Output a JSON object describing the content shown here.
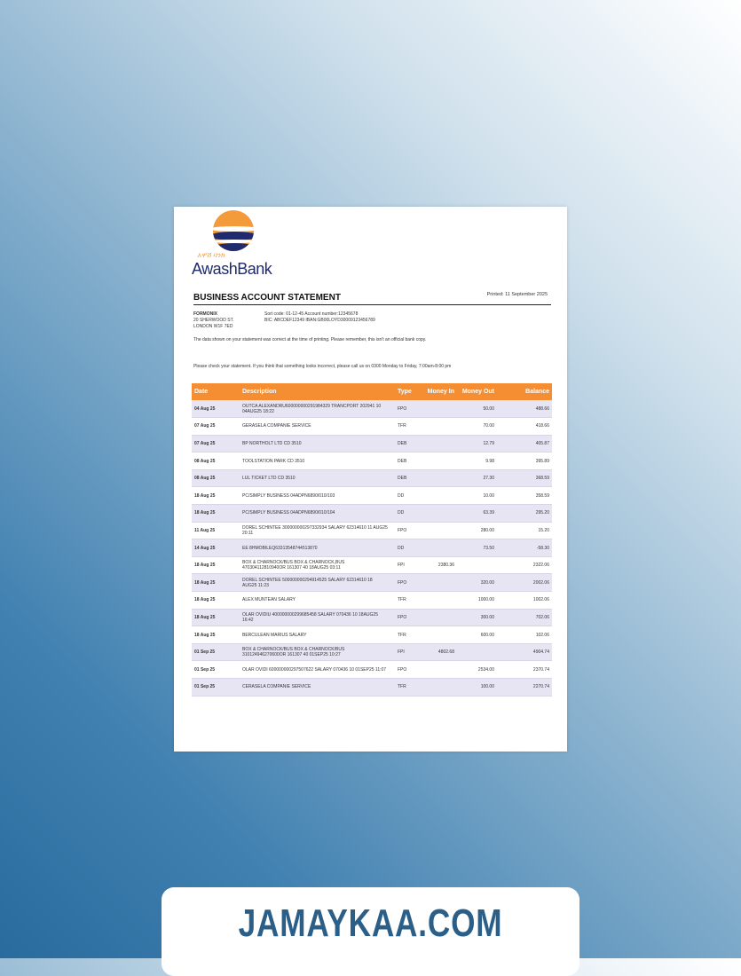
{
  "bank": {
    "name": "AwashBank",
    "amharic": "አዋሽ ባንክ"
  },
  "statement": {
    "title": "BUSINESS ACCOUNT STATEMENT",
    "printed": "Printed: 11 September 2025",
    "customer": [
      "FORMONIX",
      "20 SHERWOOD ST.",
      "LONDON W1F 7ED"
    ],
    "account_line1": "Sort code: 01-12-45   Account number:12345678",
    "account_line2": "BIC: ABCDEF12349   IBAN:GB00LOYD30009123456789",
    "note1": "The data shown on your statement was correct at the time of printing. Please remember, this isn't an official bank copy.",
    "note2": "Please check your statement. If you think that something looks incorrect, please call us on 0300 Monday to Friday, 7:00am-8:00 pm"
  },
  "table": {
    "headers": [
      "Date",
      "Description",
      "Type",
      "Money In",
      "Money Out",
      "Balance"
    ],
    "rows": [
      [
        "04 Aug 25",
        "OUTCA ALEXANDRU600000000291984329 TRANCPORT 202941 10 04AUG25 18:22",
        "FPO",
        "",
        "50.00",
        "488.66"
      ],
      [
        "07 Aug 25",
        "GERASELA COMPANIE SERVICE",
        "TFR",
        "",
        "70.00",
        "418.66"
      ],
      [
        "07 Aug 25",
        "BP NORTHOLT LTD CD 3510",
        "DEB",
        "",
        "12.79",
        "405.87"
      ],
      [
        "08 Aug 25",
        "TOOLSTATION PARK CD 3510",
        "DEB",
        "",
        "9.98",
        "395.89"
      ],
      [
        "08 Aug 25",
        "LUL TICKET LTD CD 3510",
        "DEB",
        "",
        "27.30",
        "368.59"
      ],
      [
        "18 Aug 25",
        "PC/SIMPLY BUSINESS 04ADPN6890/010/103",
        "DD",
        "",
        "10.00",
        "358.59"
      ],
      [
        "18 Aug 25",
        "PC/SIMPLY BUSINESS 04ADPN6890/010/104",
        "DD",
        "",
        "63.39",
        "295.20"
      ],
      [
        "11 Aug 25",
        "DOREL SCHINTEE 300000000297332934 SALARY 62314610 11 AUG25 20:11",
        "FPO",
        "",
        "280.00",
        "15.20"
      ],
      [
        "14 Aug 25",
        "EE 8HMOBILEQ63313548744513870",
        "DD",
        "",
        "73.50",
        "-58.30"
      ],
      [
        "18 Aug 25",
        "BOX & CHARNOCK/BUS BOX & CHARNOCK,BUS 470304112810940OR 161307 40 18AUG25 03:11",
        "FPI",
        "2380.36",
        "",
        "2322.06"
      ],
      [
        "18 Aug 25",
        "DOREL SCHINTEE 500000000294914525 SALARY 62314610 18 AUG25 11:23",
        "FPO",
        "",
        "320.00",
        "2002.06"
      ],
      [
        "18 Aug 25",
        "ALEX MUNTEAN SALARY",
        "TFR",
        "",
        "1000.00",
        "1002.06"
      ],
      [
        "18 Aug 25",
        "OLAR OVIDIU 400000000299685458 SALARY 070436 10 18AUG25 16:42",
        "FPO",
        "",
        "300.00",
        "702.06"
      ],
      [
        "18 Aug 25",
        "BERCULEAN MARIUS SALARY",
        "TFR",
        "",
        "600.00",
        "102.06"
      ],
      [
        "01 Sep 25",
        "BOX & CHARNOCK/BUS BOX & CHARNOCK/BUS 310124946270600OR 161307 40 01SEP25 10:27",
        "FPI",
        "4802.68",
        "",
        "4904.74"
      ],
      [
        "01 Sep 25",
        "OLAR OVIDI 600000000297507622 SALARY 070436 10 01SEP25 11:07",
        "FPO",
        "",
        "2534.00",
        "2370.74"
      ],
      [
        "01 Sep 25",
        "CERASELA COMPANIE SERVICE",
        "TFR",
        "",
        "100.00",
        "2270.74"
      ]
    ]
  },
  "footer": {
    "site": "JAMAYKAA.COM"
  },
  "colors": {
    "accent": "#f58d32",
    "row_alt": "#e7e5f4",
    "brand_blue": "#1f2b6e",
    "footer_text": "#2c5f88"
  }
}
